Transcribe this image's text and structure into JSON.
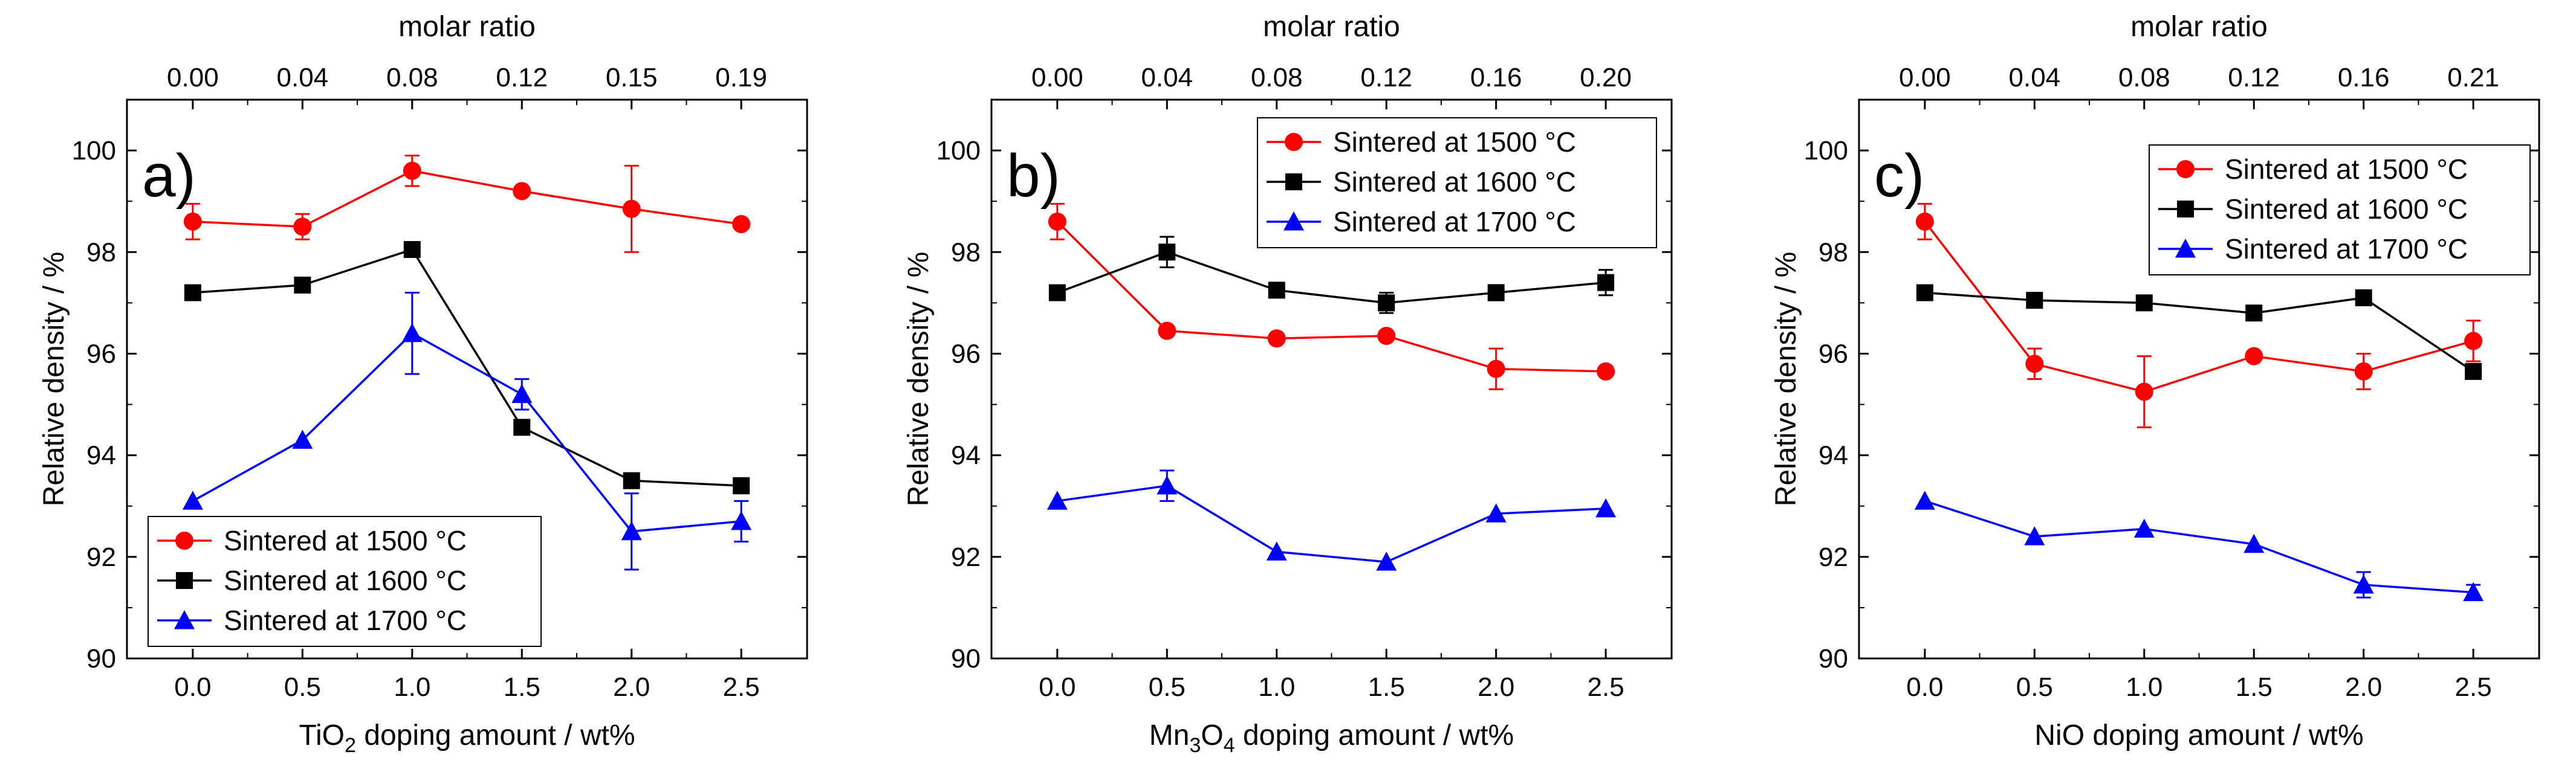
{
  "chart_data": [
    {
      "type": "line",
      "panel_label": "a)",
      "xlabel_prefix": "TiO",
      "xlabel_sub": "2",
      "xlabel_suffix": " doping amount / wt%",
      "ylabel": "Relative density / %",
      "top_axis_title": "molar ratio",
      "top_ticks": [
        "0.00",
        "0.04",
        "0.08",
        "0.12",
        "0.15",
        "0.19"
      ],
      "x": [
        0.0,
        0.5,
        1.0,
        1.5,
        2.0,
        2.5
      ],
      "x_tick_labels": [
        "0.0",
        "0.5",
        "1.0",
        "1.5",
        "2.0",
        "2.5"
      ],
      "xlim": [
        -0.3,
        2.8
      ],
      "ylim": [
        90,
        101
      ],
      "y_ticks": [
        90,
        92,
        94,
        96,
        98,
        100
      ],
      "legend_position": "bottom-left",
      "series": [
        {
          "name": "Sintered at 1500 °C",
          "color": "#ff0000",
          "marker": "circle",
          "values": [
            98.6,
            98.5,
            99.6,
            99.2,
            98.85,
            98.55
          ],
          "errors": [
            0.35,
            0.25,
            0.3,
            0.0,
            0.85,
            0.0
          ]
        },
        {
          "name": "Sintered at 1600 °C",
          "color": "#000000",
          "marker": "square",
          "values": [
            97.2,
            97.35,
            98.05,
            94.55,
            93.5,
            93.4
          ],
          "errors": [
            0.0,
            0.0,
            0.0,
            0.0,
            0.0,
            0.15
          ]
        },
        {
          "name": "Sintered at 1700 °C",
          "color": "#0000ff",
          "marker": "triangle",
          "values": [
            93.1,
            94.3,
            96.4,
            95.2,
            92.5,
            92.7
          ],
          "errors": [
            0.0,
            0.0,
            0.8,
            0.3,
            0.75,
            0.4
          ]
        }
      ]
    },
    {
      "type": "line",
      "panel_label": "b)",
      "xlabel_prefix": "Mn",
      "xlabel_sub": "3",
      "xlabel_mid": "O",
      "xlabel_sub2": "4",
      "xlabel_suffix": " doping amount / wt%",
      "ylabel": "Relative density / %",
      "top_axis_title": "molar ratio",
      "top_ticks": [
        "0.00",
        "0.04",
        "0.08",
        "0.12",
        "0.16",
        "0.20"
      ],
      "x": [
        0.0,
        0.5,
        1.0,
        1.5,
        2.0,
        2.5
      ],
      "x_tick_labels": [
        "0.0",
        "0.5",
        "1.0",
        "1.5",
        "2.0",
        "2.5"
      ],
      "xlim": [
        -0.3,
        2.8
      ],
      "ylim": [
        90,
        101
      ],
      "y_ticks": [
        90,
        92,
        94,
        96,
        98,
        100
      ],
      "legend_position": "top-right",
      "series": [
        {
          "name": "Sintered at 1500 °C",
          "color": "#ff0000",
          "marker": "circle",
          "values": [
            98.6,
            96.45,
            96.3,
            96.35,
            95.7,
            95.65
          ],
          "errors": [
            0.35,
            0.0,
            0.0,
            0.0,
            0.4,
            0.0
          ]
        },
        {
          "name": "Sintered at 1600 °C",
          "color": "#000000",
          "marker": "square",
          "values": [
            97.2,
            98.0,
            97.25,
            97.0,
            97.2,
            97.4
          ],
          "errors": [
            0.0,
            0.3,
            0.0,
            0.2,
            0.15,
            0.25
          ]
        },
        {
          "name": "Sintered at 1700 °C",
          "color": "#0000ff",
          "marker": "triangle",
          "values": [
            93.1,
            93.4,
            92.1,
            91.9,
            92.85,
            92.95
          ],
          "errors": [
            0.0,
            0.3,
            0.0,
            0.0,
            0.0,
            0.0
          ]
        }
      ]
    },
    {
      "type": "line",
      "panel_label": "c)",
      "xlabel_prefix": "NiO",
      "xlabel_suffix": " doping amount / wt%",
      "ylabel": "Relative density / %",
      "top_axis_title": "molar ratio",
      "top_ticks": [
        "0.00",
        "0.04",
        "0.08",
        "0.12",
        "0.16",
        "0.21"
      ],
      "x": [
        0.0,
        0.5,
        1.0,
        1.5,
        2.0,
        2.5
      ],
      "x_tick_labels": [
        "0.0",
        "0.5",
        "1.0",
        "1.5",
        "2.0",
        "2.5"
      ],
      "xlim": [
        -0.3,
        2.8
      ],
      "ylim": [
        90,
        101
      ],
      "y_ticks": [
        90,
        92,
        94,
        96,
        98,
        100
      ],
      "legend_position": "top-right",
      "series": [
        {
          "name": "Sintered at 1500 °C",
          "color": "#ff0000",
          "marker": "circle",
          "values": [
            98.6,
            95.8,
            95.25,
            95.95,
            95.65,
            96.25
          ],
          "errors": [
            0.35,
            0.3,
            0.7,
            0.0,
            0.35,
            0.4
          ]
        },
        {
          "name": "Sintered at 1600 °C",
          "color": "#000000",
          "marker": "square",
          "values": [
            97.2,
            97.05,
            97.0,
            96.8,
            97.1,
            95.65
          ],
          "errors": [
            0.0,
            0.0,
            0.0,
            0.0,
            0.0,
            0.0
          ]
        },
        {
          "name": "Sintered at 1700 °C",
          "color": "#0000ff",
          "marker": "triangle",
          "values": [
            93.1,
            92.4,
            92.55,
            92.25,
            91.45,
            91.3
          ],
          "errors": [
            0.0,
            0.0,
            0.0,
            0.0,
            0.25,
            0.15
          ]
        }
      ]
    }
  ]
}
